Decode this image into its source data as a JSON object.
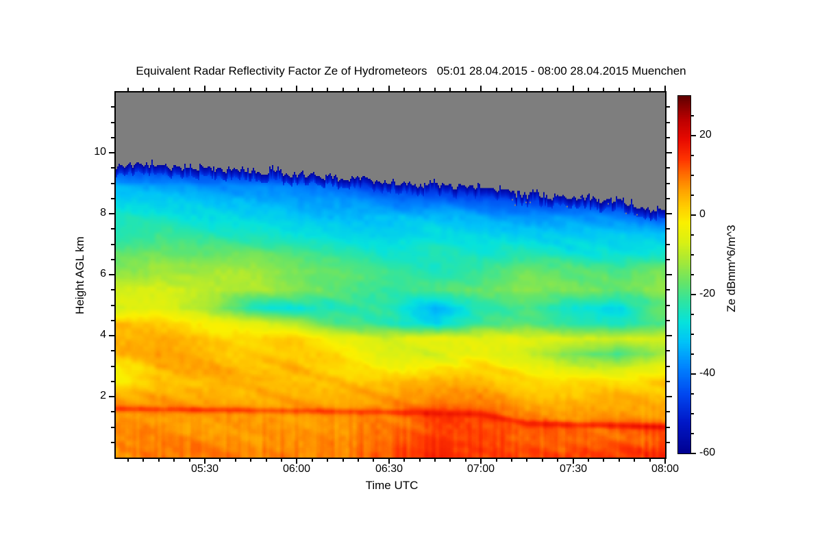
{
  "chart_data": {
    "type": "heatmap",
    "title": "Equivalent Radar Reflectivity Factor Ze of Hydrometeors   05:01 28.04.2015 - 08:00 28.04.2015 Muenchen",
    "xlabel": "Time UTC",
    "ylabel": "Height AGL km",
    "x_axis": {
      "start": "05:01",
      "end": "08:00",
      "total_minutes": 179,
      "major_tick_labels": [
        "05:30",
        "06:00",
        "06:30",
        "07:00",
        "07:30",
        "08:00"
      ],
      "major_tick_minutes": [
        29,
        59,
        89,
        119,
        149,
        179
      ],
      "minor_tick_step_min": 5
    },
    "y_axis": {
      "range_km": [
        0,
        11.98
      ],
      "major_ticks": [
        2,
        4,
        6,
        8,
        10
      ],
      "minor_tick_step_km": 0.5
    },
    "colorbar": {
      "label": "Ze dBmm^6/m^3",
      "range": [
        -60,
        30
      ],
      "major_ticks": [
        20,
        0,
        -20,
        -40,
        -60
      ],
      "minor_tick_step": 5,
      "colormap_stops": [
        [
          -60,
          "#000090"
        ],
        [
          -52,
          "#0018C8"
        ],
        [
          -45,
          "#0048F0"
        ],
        [
          -38,
          "#0086FF"
        ],
        [
          -32,
          "#00C2F8"
        ],
        [
          -27,
          "#06E2DC"
        ],
        [
          -22,
          "#2CE4A4"
        ],
        [
          -17,
          "#66E468"
        ],
        [
          -12,
          "#A2E83A"
        ],
        [
          -7,
          "#D8F014"
        ],
        [
          -2,
          "#FAF000"
        ],
        [
          2,
          "#FFCE00"
        ],
        [
          6,
          "#FFA400"
        ],
        [
          10,
          "#FF7000"
        ],
        [
          14,
          "#FF3400"
        ],
        [
          19,
          "#E80A00"
        ],
        [
          24,
          "#BC0000"
        ],
        [
          30,
          "#5E0000"
        ]
      ],
      "nodata_color": "#7E7E7E"
    },
    "x_time_labels": [
      "05:01",
      "05:15",
      "05:30",
      "05:45",
      "06:00",
      "06:15",
      "06:30",
      "06:45",
      "07:00",
      "07:15",
      "07:30",
      "07:45",
      "08:00"
    ],
    "x_minutes": [
      0,
      14,
      29,
      44,
      59,
      74,
      89,
      104,
      119,
      134,
      149,
      164,
      179
    ],
    "heights_km": [
      0.15,
      0.6,
      1.0,
      1.3,
      1.55,
      1.8,
      2.1,
      2.5,
      2.9,
      3.4,
      3.9,
      4.4,
      4.9,
      5.5,
      6.1,
      6.7,
      7.3,
      7.9,
      8.4,
      8.9,
      9.3,
      9.6
    ],
    "values_dbz": [
      [
        8,
        8,
        9,
        8,
        9,
        9,
        11,
        15,
        14,
        12,
        12,
        13,
        15
      ],
      [
        7,
        7,
        8,
        7,
        8,
        8,
        10,
        14,
        13,
        10,
        9,
        10,
        12
      ],
      [
        7,
        7,
        7,
        7,
        7,
        7,
        9,
        13,
        12,
        10,
        10,
        10,
        11
      ],
      [
        7,
        7,
        7,
        7,
        7,
        7,
        9,
        13,
        12,
        8,
        7,
        7,
        7
      ],
      [
        8,
        8,
        8,
        8,
        8,
        8,
        9,
        12,
        11,
        6,
        6,
        6,
        6
      ],
      [
        7,
        7,
        7,
        6,
        6,
        6,
        7,
        9,
        8,
        5,
        5,
        5,
        5
      ],
      [
        5,
        5,
        6,
        5,
        5,
        5,
        6,
        7,
        6,
        4,
        3,
        3,
        4
      ],
      [
        -3,
        3,
        4,
        4,
        4,
        3,
        3,
        5,
        4,
        1,
        0,
        0,
        2
      ],
      [
        -4,
        4,
        5,
        4,
        5,
        1,
        -2,
        0,
        2,
        -2,
        -6,
        -8,
        -4
      ],
      [
        4,
        6,
        4,
        2,
        3,
        0,
        -6,
        -8,
        -4,
        -8,
        -16,
        -20,
        -12
      ],
      [
        5,
        6,
        3,
        1,
        2,
        -4,
        -8,
        -5,
        -6,
        -6,
        -6,
        -7,
        -6
      ],
      [
        4,
        2,
        -2,
        -6,
        -10,
        -20,
        -24,
        -30,
        -20,
        -18,
        -22,
        -24,
        -20
      ],
      [
        -8,
        -6,
        -12,
        -24,
        -26,
        -24,
        -22,
        -34,
        -24,
        -20,
        -26,
        -30,
        -16
      ],
      [
        -8,
        -7,
        -9,
        -12,
        -15,
        -18,
        -22,
        -20,
        -17,
        -14,
        -16,
        -17,
        -14
      ],
      [
        -14,
        -12,
        -13,
        -12,
        -15,
        -18,
        -22,
        -24,
        -20,
        -16,
        -18,
        -20,
        -16
      ],
      [
        -18,
        -16,
        -18,
        -16,
        -19,
        -22,
        -25,
        -24,
        -26,
        -24,
        -26,
        -27,
        -26
      ],
      [
        -23,
        -21,
        -23,
        -24,
        -26,
        -28,
        -30,
        -28,
        -30,
        -30,
        -31,
        -30,
        -31
      ],
      [
        -26,
        -25,
        -27,
        -29,
        -31,
        -32,
        -33,
        -32,
        -35,
        -37,
        -36,
        -39,
        -44
      ],
      [
        -29,
        -29,
        -31,
        -33,
        -35,
        -37,
        -39,
        -41,
        -43,
        -45,
        -47,
        -50,
        -56
      ],
      [
        -33,
        -35,
        -37,
        -39,
        -41,
        -43,
        -47,
        -51,
        -55,
        -58,
        -60,
        -60,
        -60
      ],
      [
        -42,
        -44,
        -46,
        -49,
        -52,
        -55,
        -58,
        -60,
        -60,
        -60,
        -60,
        -60,
        -60
      ],
      [
        -50,
        -52,
        -55,
        -57,
        -60,
        -60,
        -60,
        -60,
        -60,
        -60,
        -60,
        -60,
        -60
      ]
    ],
    "cloud_top_km": [
      9.62,
      9.55,
      9.48,
      9.42,
      9.3,
      9.18,
      9.05,
      8.92,
      8.78,
      8.62,
      8.55,
      8.38,
      8.05
    ],
    "bright_band_km": [
      1.6,
      1.58,
      1.56,
      1.54,
      1.52,
      1.5,
      1.48,
      1.45,
      1.42,
      1.12,
      1.08,
      1.05,
      1.0
    ],
    "bright_band_amp_db": [
      5,
      5,
      6,
      5,
      5,
      5,
      5,
      4,
      4,
      5,
      6,
      6,
      6
    ]
  }
}
